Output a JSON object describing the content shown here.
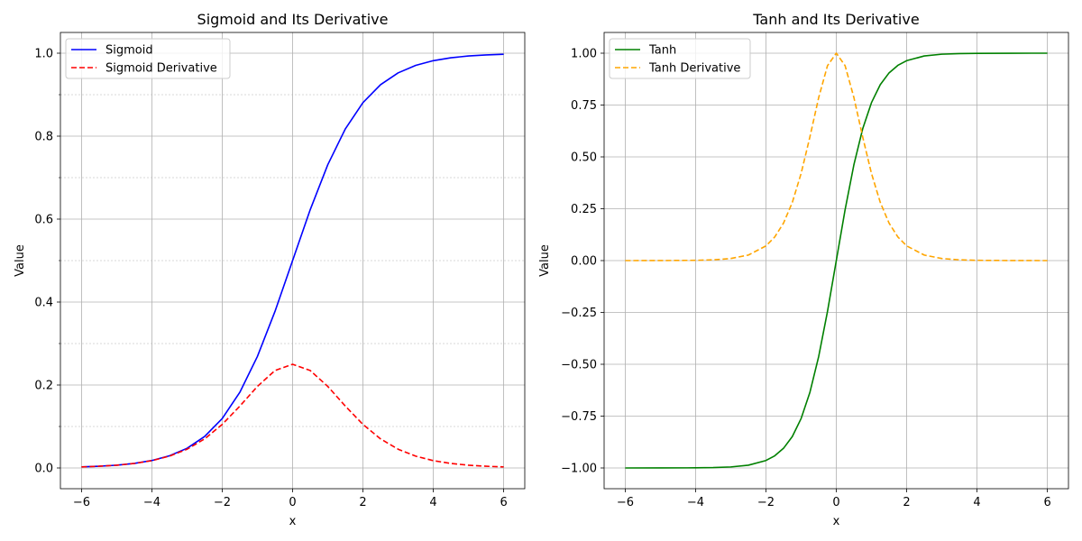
{
  "chart_data": [
    {
      "type": "line",
      "title": "Sigmoid and Its Derivative",
      "xlabel": "x",
      "ylabel": "Value",
      "xlim": [
        -6.6,
        6.6
      ],
      "ylim": [
        -0.05,
        1.05
      ],
      "xticks": [
        -6,
        -4,
        -2,
        0,
        2,
        4,
        6
      ],
      "xtick_labels": [
        "−6",
        "−4",
        "−2",
        "0",
        "2",
        "4",
        "6"
      ],
      "yticks": [
        0.0,
        0.2,
        0.4,
        0.6,
        0.8,
        1.0
      ],
      "ytick_labels": [
        "0.0",
        "0.2",
        "0.4",
        "0.6",
        "0.8",
        "1.0"
      ],
      "minor_yticks": [
        0.1,
        0.3,
        0.5,
        0.7,
        0.9
      ],
      "grid": true,
      "legend_position": "upper left",
      "series": [
        {
          "name": "Sigmoid",
          "color": "#0000ff",
          "dash": "solid",
          "x": [
            -6,
            -5.5,
            -5,
            -4.5,
            -4,
            -3.5,
            -3,
            -2.5,
            -2,
            -1.5,
            -1,
            -0.5,
            0,
            0.5,
            1,
            1.5,
            2,
            2.5,
            3,
            3.5,
            4,
            4.5,
            5,
            5.5,
            6
          ],
          "y": [
            0.0025,
            0.0041,
            0.0067,
            0.011,
            0.018,
            0.0293,
            0.0474,
            0.0759,
            0.1192,
            0.1824,
            0.2689,
            0.3775,
            0.5,
            0.6225,
            0.7311,
            0.8176,
            0.8808,
            0.9241,
            0.9526,
            0.9707,
            0.982,
            0.989,
            0.9933,
            0.9959,
            0.9975
          ]
        },
        {
          "name": "Sigmoid Derivative",
          "color": "#ff0000",
          "dash": "dashed",
          "x": [
            -6,
            -5.5,
            -5,
            -4.5,
            -4,
            -3.5,
            -3,
            -2.5,
            -2,
            -1.5,
            -1,
            -0.5,
            0,
            0.5,
            1,
            1.5,
            2,
            2.5,
            3,
            3.5,
            4,
            4.5,
            5,
            5.5,
            6
          ],
          "y": [
            0.0025,
            0.0041,
            0.0066,
            0.0109,
            0.0177,
            0.0285,
            0.0452,
            0.0701,
            0.105,
            0.1491,
            0.1966,
            0.235,
            0.25,
            0.235,
            0.1966,
            0.1491,
            0.105,
            0.0701,
            0.0452,
            0.0285,
            0.0177,
            0.0109,
            0.0066,
            0.0041,
            0.0025
          ]
        }
      ]
    },
    {
      "type": "line",
      "title": "Tanh and Its Derivative",
      "xlabel": "x",
      "ylabel": "Value",
      "xlim": [
        -6.6,
        6.6
      ],
      "ylim": [
        -1.1,
        1.1
      ],
      "xticks": [
        -6,
        -4,
        -2,
        0,
        2,
        4,
        6
      ],
      "xtick_labels": [
        "−6",
        "−4",
        "−2",
        "0",
        "2",
        "4",
        "6"
      ],
      "yticks": [
        -1.0,
        -0.75,
        -0.5,
        -0.25,
        0.0,
        0.25,
        0.5,
        0.75,
        1.0
      ],
      "ytick_labels": [
        "−1.00",
        "−0.75",
        "−0.50",
        "−0.25",
        "0.00",
        "0.25",
        "0.50",
        "0.75",
        "1.00"
      ],
      "minor_yticks": [],
      "grid": true,
      "legend_position": "upper left",
      "series": [
        {
          "name": "Tanh",
          "color": "#008000",
          "dash": "solid",
          "x": [
            -6,
            -5,
            -4,
            -3.5,
            -3,
            -2.5,
            -2,
            -1.75,
            -1.5,
            -1.25,
            -1,
            -0.75,
            -0.5,
            -0.25,
            0,
            0.25,
            0.5,
            0.75,
            1,
            1.25,
            1.5,
            1.75,
            2,
            2.5,
            3,
            3.5,
            4,
            5,
            6
          ],
          "y": [
            -1.0,
            -0.9999,
            -0.9993,
            -0.9982,
            -0.9951,
            -0.9866,
            -0.964,
            -0.9414,
            -0.9051,
            -0.8483,
            -0.7616,
            -0.6351,
            -0.4621,
            -0.2449,
            0.0,
            0.2449,
            0.4621,
            0.6351,
            0.7616,
            0.8483,
            0.9051,
            0.9414,
            0.964,
            0.9866,
            0.9951,
            0.9982,
            0.9993,
            0.9999,
            1.0
          ]
        },
        {
          "name": "Tanh Derivative",
          "color": "#ffa500",
          "dash": "dashed",
          "x": [
            -6,
            -5,
            -4,
            -3.5,
            -3,
            -2.5,
            -2,
            -1.75,
            -1.5,
            -1.25,
            -1,
            -0.75,
            -0.5,
            -0.25,
            0,
            0.25,
            0.5,
            0.75,
            1,
            1.25,
            1.5,
            1.75,
            2,
            2.5,
            3,
            3.5,
            4,
            5,
            6
          ],
          "y": [
            0.0,
            0.0002,
            0.0013,
            0.0036,
            0.0099,
            0.0266,
            0.0707,
            0.1138,
            0.1807,
            0.2805,
            0.42,
            0.5966,
            0.7864,
            0.94,
            1.0,
            0.94,
            0.7864,
            0.5966,
            0.42,
            0.2805,
            0.1807,
            0.1138,
            0.0707,
            0.0266,
            0.0099,
            0.0036,
            0.0013,
            0.0002,
            0.0
          ]
        }
      ]
    }
  ]
}
